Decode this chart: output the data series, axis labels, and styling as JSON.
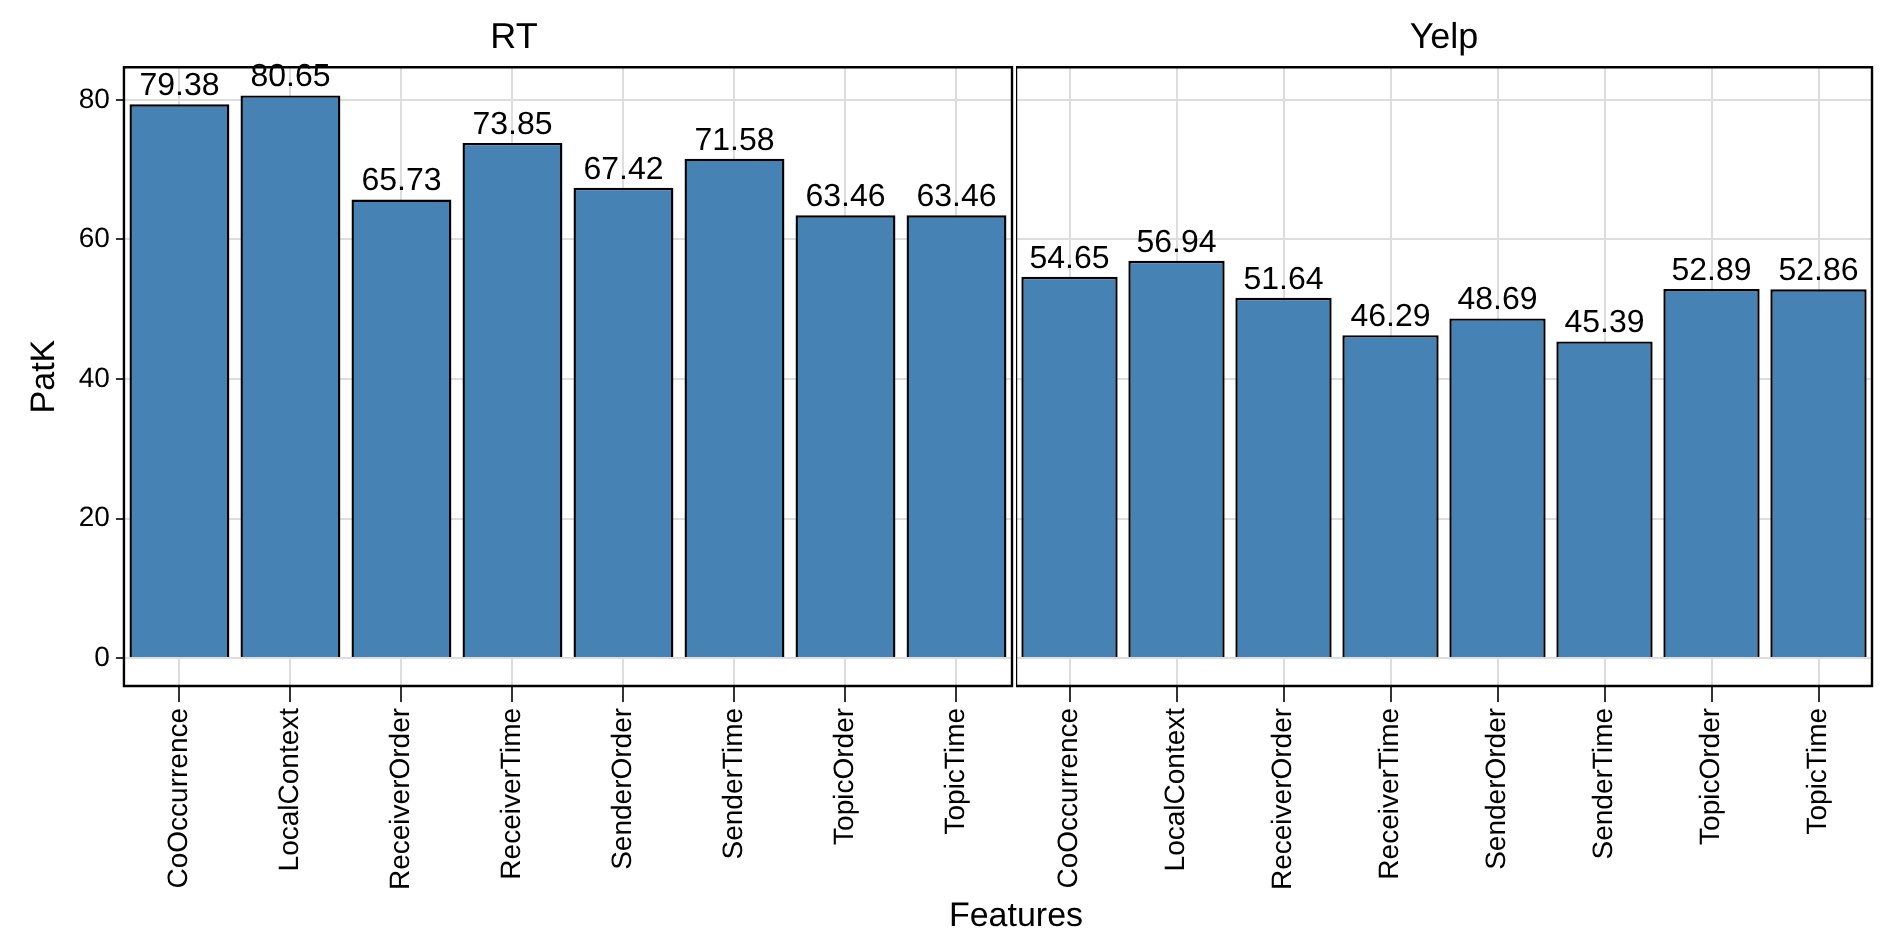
{
  "chart_data": [
    {
      "type": "bar",
      "title": "RT",
      "ylabel": "PatK",
      "xlabel": "Features",
      "categories": [
        "CoOccurrence",
        "LocalContext",
        "ReceiverOrder",
        "ReceiverTime",
        "SenderOrder",
        "SenderTime",
        "TopicOrder",
        "TopicTime"
      ],
      "values": [
        79.38,
        80.65,
        65.73,
        73.85,
        67.42,
        71.58,
        63.46,
        63.46
      ],
      "color": "#4682b4",
      "ylim": [
        -4,
        84.7
      ],
      "yticks": [
        0,
        20,
        40,
        60,
        80
      ],
      "grid": true,
      "data_labels": true
    },
    {
      "type": "bar",
      "title": "Yelp",
      "categories": [
        "CoOccurrence",
        "LocalContext",
        "ReceiverOrder",
        "ReceiverTime",
        "SenderOrder",
        "SenderTime",
        "TopicOrder",
        "TopicTime"
      ],
      "values": [
        54.65,
        56.94,
        51.64,
        46.29,
        48.69,
        45.39,
        52.89,
        52.86
      ],
      "color": "#4682b4",
      "ylim": [
        -4,
        84.7
      ],
      "yticks": [
        0,
        20,
        40,
        60,
        80
      ],
      "grid": true,
      "data_labels": true,
      "tick_labels": "x"
    }
  ]
}
